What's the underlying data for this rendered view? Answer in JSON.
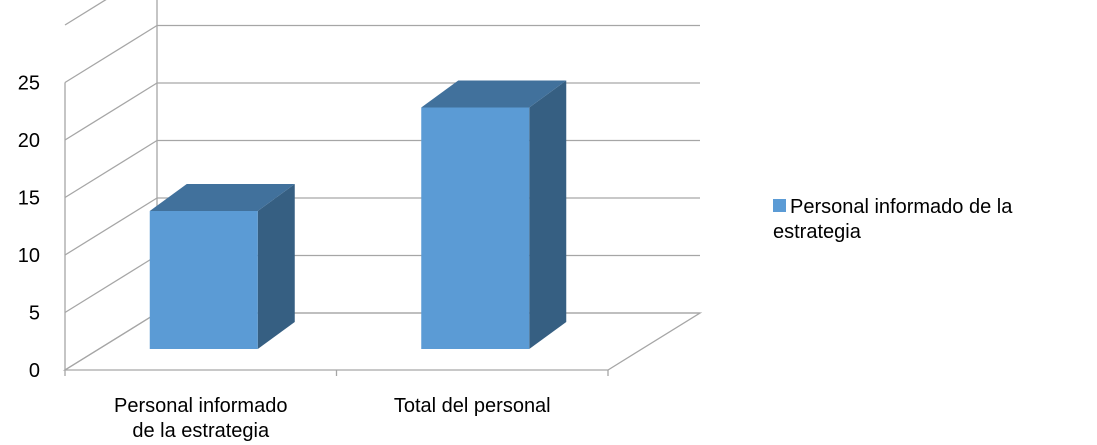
{
  "chart_data": {
    "type": "bar",
    "categories": [
      "Personal informado de la estrategia",
      "Total del personal"
    ],
    "series": [
      {
        "name": "Personal informado de la estrategia",
        "values": [
          12,
          21
        ]
      }
    ],
    "ylim": [
      0,
      30
    ],
    "yticks": [
      0,
      5,
      10,
      15,
      20,
      25
    ],
    "grid": true,
    "legend": "right",
    "colors": {
      "front": "#5b9bd5",
      "top": "#41719c",
      "side": "#365f82",
      "grid": "#a6a6a6"
    }
  }
}
